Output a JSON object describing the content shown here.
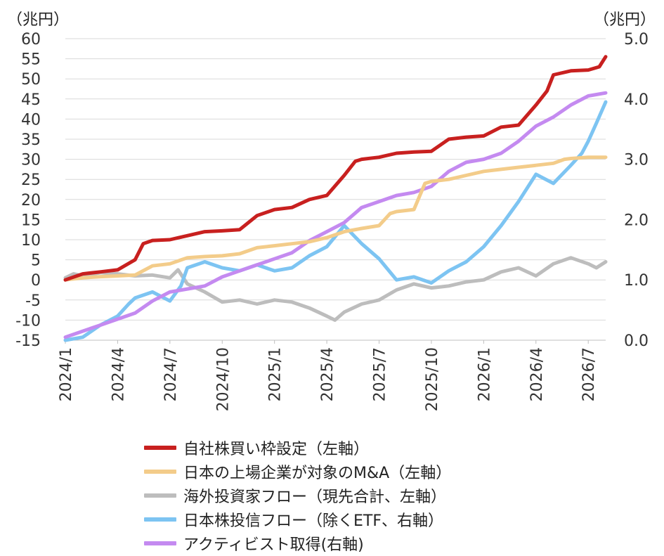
{
  "chart_data": {
    "type": "line",
    "left_unit": "（兆円）",
    "right_unit": "（兆円）",
    "left_ylim": [
      -15,
      60
    ],
    "left_ticks": [
      60,
      55,
      50,
      45,
      40,
      35,
      30,
      25,
      20,
      15,
      10,
      5,
      0,
      -5,
      -10,
      -15
    ],
    "right_ylim": [
      0.0,
      5.0
    ],
    "right_ticks": [
      "5.0",
      "4.0",
      "3.0",
      "2.0",
      "1.0",
      "0.0"
    ],
    "x_tick_labels": [
      "2024/1",
      "2024/4",
      "2024/7",
      "2024/10",
      "2025/1",
      "2025/4",
      "2025/7",
      "2025/10",
      "2026/1",
      "2026/4",
      "2026/7"
    ],
    "x_range": [
      "2024-01",
      "2026-08"
    ],
    "grid": "horizontal",
    "legend_position": "bottom",
    "series": [
      {
        "name": "自社株買い枠設定（左軸）",
        "axis": "left",
        "color": "#c8201f",
        "points": [
          [
            "2024-01",
            0
          ],
          [
            "2024-02",
            1.5
          ],
          [
            "2024-03",
            2
          ],
          [
            "2024-04",
            2.5
          ],
          [
            "2024-05",
            5
          ],
          [
            "2024-05-15",
            9
          ],
          [
            "2024-06",
            9.8
          ],
          [
            "2024-07",
            10
          ],
          [
            "2024-08",
            11
          ],
          [
            "2024-09",
            12
          ],
          [
            "2024-10",
            12.2
          ],
          [
            "2024-11",
            12.5
          ],
          [
            "2024-12",
            16
          ],
          [
            "2025-01",
            17.5
          ],
          [
            "2025-02",
            18
          ],
          [
            "2025-03",
            20
          ],
          [
            "2025-04",
            21
          ],
          [
            "2025-05",
            26
          ],
          [
            "2025-05-20",
            29.5
          ],
          [
            "2025-06",
            30
          ],
          [
            "2025-07",
            30.5
          ],
          [
            "2025-08",
            31.5
          ],
          [
            "2025-09",
            31.8
          ],
          [
            "2025-10",
            32
          ],
          [
            "2025-11",
            35
          ],
          [
            "2025-12",
            35.5
          ],
          [
            "2026-01",
            35.8
          ],
          [
            "2026-02",
            38
          ],
          [
            "2026-03",
            38.5
          ],
          [
            "2026-04",
            43.5
          ],
          [
            "2026-04-20",
            47
          ],
          [
            "2026-05",
            51
          ],
          [
            "2026-06",
            52
          ],
          [
            "2026-07",
            52.2
          ],
          [
            "2026-07-20",
            53
          ],
          [
            "2026-08",
            55.5
          ]
        ]
      },
      {
        "name": "日本の上場企業が対象のM&A（左軸）",
        "axis": "left",
        "color": "#f3cc8a",
        "points": [
          [
            "2024-01",
            0
          ],
          [
            "2024-02",
            0.5
          ],
          [
            "2024-03",
            0.8
          ],
          [
            "2024-04",
            1
          ],
          [
            "2024-05",
            1.2
          ],
          [
            "2024-06",
            3.5
          ],
          [
            "2024-07",
            4
          ],
          [
            "2024-08",
            5.5
          ],
          [
            "2024-09",
            5.8
          ],
          [
            "2024-10",
            6
          ],
          [
            "2024-11",
            6.5
          ],
          [
            "2024-12",
            8
          ],
          [
            "2025-01",
            8.5
          ],
          [
            "2025-02",
            9
          ],
          [
            "2025-03",
            9.5
          ],
          [
            "2025-04",
            10.5
          ],
          [
            "2025-05",
            12
          ],
          [
            "2025-06",
            12.8
          ],
          [
            "2025-07",
            13.5
          ],
          [
            "2025-07-20",
            16.5
          ],
          [
            "2025-08",
            17
          ],
          [
            "2025-09",
            17.5
          ],
          [
            "2025-09-20",
            24
          ],
          [
            "2025-10",
            24.5
          ],
          [
            "2025-11",
            25
          ],
          [
            "2025-12",
            26
          ],
          [
            "2026-01",
            27
          ],
          [
            "2026-02",
            27.5
          ],
          [
            "2026-03",
            28
          ],
          [
            "2026-04",
            28.5
          ],
          [
            "2026-05",
            29
          ],
          [
            "2026-05-20",
            30
          ],
          [
            "2026-06",
            30.2
          ],
          [
            "2026-07",
            30.5
          ],
          [
            "2026-08",
            30.5
          ]
        ]
      },
      {
        "name": "海外投資家フロー（現先合計、左軸）",
        "axis": "left",
        "color": "#bdbdbd",
        "points": [
          [
            "2024-01",
            0.5
          ],
          [
            "2024-01-15",
            1.5
          ],
          [
            "2024-02",
            1
          ],
          [
            "2024-03",
            1.8
          ],
          [
            "2024-04",
            1.5
          ],
          [
            "2024-05",
            1
          ],
          [
            "2024-06",
            1.2
          ],
          [
            "2024-07",
            0.5
          ],
          [
            "2024-07-15",
            2.5
          ],
          [
            "2024-08",
            -1
          ],
          [
            "2024-09",
            -3
          ],
          [
            "2024-10",
            -5.5
          ],
          [
            "2024-11",
            -5
          ],
          [
            "2024-12",
            -6
          ],
          [
            "2025-01",
            -5
          ],
          [
            "2025-02",
            -5.5
          ],
          [
            "2025-03",
            -7
          ],
          [
            "2025-04",
            -9
          ],
          [
            "2025-04-15",
            -10
          ],
          [
            "2025-05",
            -8
          ],
          [
            "2025-06",
            -6
          ],
          [
            "2025-07",
            -5
          ],
          [
            "2025-08",
            -2.5
          ],
          [
            "2025-09",
            -1
          ],
          [
            "2025-10",
            -2
          ],
          [
            "2025-11",
            -1.5
          ],
          [
            "2025-12",
            -0.5
          ],
          [
            "2026-01",
            0
          ],
          [
            "2026-02",
            2
          ],
          [
            "2026-03",
            3
          ],
          [
            "2026-04",
            1
          ],
          [
            "2026-05",
            4
          ],
          [
            "2026-06",
            5.5
          ],
          [
            "2026-07",
            4
          ],
          [
            "2026-07-15",
            3
          ],
          [
            "2026-08",
            4.5
          ]
        ]
      },
      {
        "name": "日本株投信フロー（除くETF、右軸）",
        "axis": "right",
        "color": "#7dc4f2",
        "points": [
          [
            "2024-01",
            0.0
          ],
          [
            "2024-02",
            0.05
          ],
          [
            "2024-03",
            0.25
          ],
          [
            "2024-04",
            0.4
          ],
          [
            "2024-04-20",
            0.6
          ],
          [
            "2024-05",
            0.7
          ],
          [
            "2024-06",
            0.8
          ],
          [
            "2024-07",
            0.65
          ],
          [
            "2024-07-20",
            0.9
          ],
          [
            "2024-08",
            1.2
          ],
          [
            "2024-09",
            1.3
          ],
          [
            "2024-10",
            1.2
          ],
          [
            "2024-11",
            1.15
          ],
          [
            "2024-12",
            1.25
          ],
          [
            "2025-01",
            1.15
          ],
          [
            "2025-02",
            1.2
          ],
          [
            "2025-03",
            1.4
          ],
          [
            "2025-04",
            1.55
          ],
          [
            "2025-05",
            1.9
          ],
          [
            "2025-06",
            1.6
          ],
          [
            "2025-07",
            1.35
          ],
          [
            "2025-08",
            1.0
          ],
          [
            "2025-09",
            1.05
          ],
          [
            "2025-10",
            0.95
          ],
          [
            "2025-11",
            1.15
          ],
          [
            "2025-12",
            1.3
          ],
          [
            "2026-01",
            1.55
          ],
          [
            "2026-02",
            1.9
          ],
          [
            "2026-03",
            2.3
          ],
          [
            "2026-04",
            2.75
          ],
          [
            "2026-05",
            2.6
          ],
          [
            "2026-06",
            2.9
          ],
          [
            "2026-06-20",
            3.1
          ],
          [
            "2026-07",
            3.3
          ],
          [
            "2026-07-15",
            3.6
          ],
          [
            "2026-08",
            3.95
          ]
        ]
      },
      {
        "name": "アクティビスト取得(右軸)",
        "axis": "right",
        "color": "#c48af0",
        "points": [
          [
            "2024-01",
            0.05
          ],
          [
            "2024-02",
            0.15
          ],
          [
            "2024-03",
            0.25
          ],
          [
            "2024-04",
            0.35
          ],
          [
            "2024-05",
            0.45
          ],
          [
            "2024-06",
            0.65
          ],
          [
            "2024-07",
            0.8
          ],
          [
            "2024-08",
            0.85
          ],
          [
            "2024-09",
            0.9
          ],
          [
            "2024-10",
            1.05
          ],
          [
            "2024-11",
            1.15
          ],
          [
            "2024-12",
            1.25
          ],
          [
            "2025-01",
            1.35
          ],
          [
            "2025-02",
            1.45
          ],
          [
            "2025-03",
            1.65
          ],
          [
            "2025-04",
            1.8
          ],
          [
            "2025-05",
            1.95
          ],
          [
            "2025-06",
            2.2
          ],
          [
            "2025-07",
            2.3
          ],
          [
            "2025-08",
            2.4
          ],
          [
            "2025-09",
            2.45
          ],
          [
            "2025-10",
            2.55
          ],
          [
            "2025-11",
            2.8
          ],
          [
            "2025-12",
            2.95
          ],
          [
            "2026-01",
            3.0
          ],
          [
            "2026-02",
            3.1
          ],
          [
            "2026-03",
            3.3
          ],
          [
            "2026-04",
            3.55
          ],
          [
            "2026-05",
            3.7
          ],
          [
            "2026-06",
            3.9
          ],
          [
            "2026-07",
            4.05
          ],
          [
            "2026-08",
            4.1
          ]
        ]
      }
    ]
  }
}
